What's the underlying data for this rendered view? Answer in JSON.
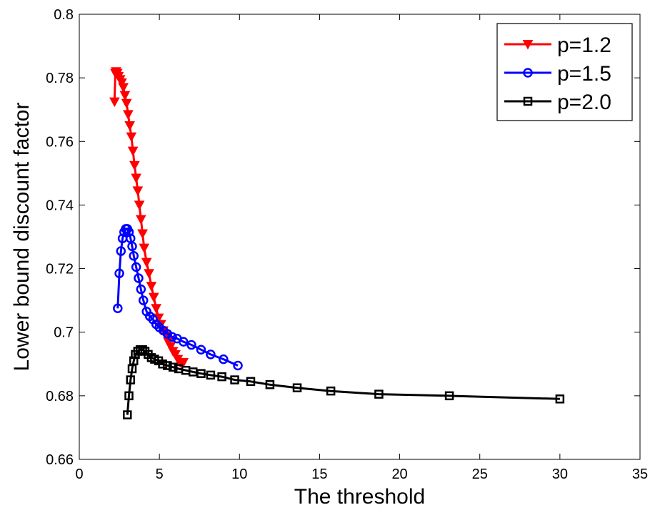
{
  "chart_data": {
    "type": "line",
    "title": "",
    "xlabel": "The threshold",
    "ylabel": "Lower bound discount factor",
    "xlim": [
      0,
      35
    ],
    "ylim": [
      0.66,
      0.8
    ],
    "xticks": [
      0,
      5,
      10,
      15,
      20,
      25,
      30,
      35
    ],
    "yticks": [
      0.66,
      0.68,
      0.7,
      0.72,
      0.74,
      0.76,
      0.78,
      0.8
    ],
    "xtick_labels": [
      "0",
      "5",
      "10",
      "15",
      "20",
      "25",
      "30",
      "35"
    ],
    "ytick_labels": [
      "0.66",
      "0.68",
      "0.7",
      "0.72",
      "0.74",
      "0.76",
      "0.78",
      "0.8"
    ],
    "grid": false,
    "legend_position": "top-right",
    "series": [
      {
        "name": "p=1.2",
        "color": "#ff0000",
        "marker": "triangle-down",
        "x": [
          2.2,
          2.25,
          2.3,
          2.38,
          2.45,
          2.55,
          2.65,
          2.75,
          2.85,
          2.95,
          3.05,
          3.15,
          3.25,
          3.35,
          3.45,
          3.55,
          3.65,
          3.75,
          3.85,
          3.95,
          4.05,
          4.2,
          4.35,
          4.5,
          4.65,
          4.8,
          4.95,
          5.1,
          5.25,
          5.4,
          5.55,
          5.7,
          5.85,
          6.0,
          6.15,
          6.3,
          6.5
        ],
        "y": [
          0.7725,
          0.7815,
          0.782,
          0.7815,
          0.7805,
          0.7795,
          0.7785,
          0.777,
          0.7745,
          0.772,
          0.7685,
          0.765,
          0.7615,
          0.757,
          0.7525,
          0.7485,
          0.7445,
          0.74,
          0.7355,
          0.731,
          0.7265,
          0.722,
          0.7185,
          0.7145,
          0.711,
          0.7075,
          0.7045,
          0.7025,
          0.7005,
          0.699,
          0.697,
          0.6955,
          0.694,
          0.693,
          0.6915,
          0.6905,
          0.6905
        ]
      },
      {
        "name": "p=1.5",
        "color": "#0000ff",
        "marker": "circle",
        "x": [
          2.4,
          2.5,
          2.6,
          2.7,
          2.8,
          2.9,
          3.0,
          3.1,
          3.2,
          3.3,
          3.4,
          3.55,
          3.7,
          3.85,
          4.0,
          4.2,
          4.4,
          4.6,
          4.8,
          5.0,
          5.25,
          5.5,
          5.8,
          6.1,
          6.5,
          7.0,
          7.6,
          8.2,
          9.0,
          9.9
        ],
        "y": [
          0.7075,
          0.7185,
          0.7255,
          0.7295,
          0.7315,
          0.7325,
          0.7325,
          0.7315,
          0.7295,
          0.727,
          0.724,
          0.7205,
          0.717,
          0.7135,
          0.71,
          0.7065,
          0.705,
          0.704,
          0.7025,
          0.7015,
          0.7005,
          0.6995,
          0.6985,
          0.698,
          0.697,
          0.696,
          0.6945,
          0.693,
          0.6915,
          0.6895
        ]
      },
      {
        "name": "p=2.0",
        "color": "#000000",
        "marker": "square",
        "x": [
          3.0,
          3.1,
          3.2,
          3.3,
          3.4,
          3.5,
          3.65,
          3.8,
          3.95,
          4.1,
          4.3,
          4.5,
          4.7,
          4.95,
          5.2,
          5.5,
          5.85,
          6.2,
          6.65,
          7.1,
          7.6,
          8.2,
          8.9,
          9.7,
          10.7,
          11.9,
          13.6,
          15.7,
          18.7,
          23.1,
          30.0
        ],
        "y": [
          0.674,
          0.68,
          0.685,
          0.6885,
          0.691,
          0.693,
          0.694,
          0.6945,
          0.6945,
          0.694,
          0.693,
          0.692,
          0.6915,
          0.691,
          0.69,
          0.6895,
          0.689,
          0.6885,
          0.688,
          0.6875,
          0.687,
          0.6865,
          0.686,
          0.685,
          0.6845,
          0.6835,
          0.6825,
          0.6815,
          0.6805,
          0.68,
          0.679
        ]
      }
    ]
  }
}
